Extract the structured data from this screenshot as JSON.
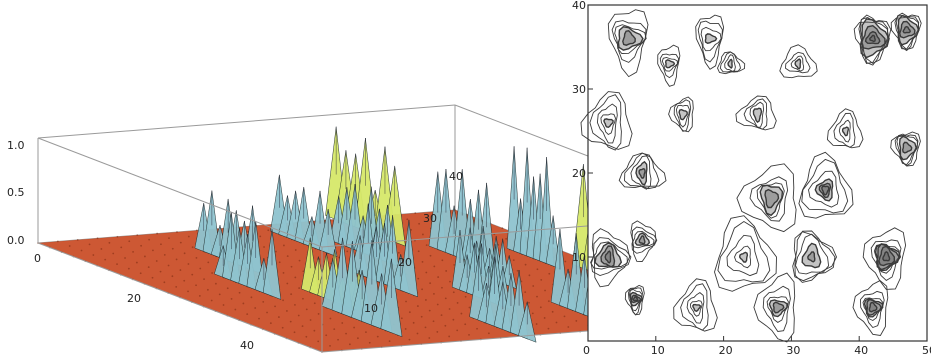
{
  "chart_data": [
    {
      "type": "surface3d",
      "z_ticks": [
        "0.0",
        "0.5",
        "1.0"
      ],
      "x_ticks": [
        "0",
        "20",
        "40"
      ],
      "y_ticks": [
        "10",
        "20",
        "30",
        "40"
      ],
      "zlim": [
        0,
        1
      ],
      "colors": {
        "floor": "#c8461e",
        "peak": "#8fc4cf",
        "plateau": "#d6e86a",
        "box": "#9a9a9a"
      },
      "blobs": [
        {
          "x": 5,
          "y": 30,
          "h": 0.95,
          "w": 3,
          "style": "green"
        },
        {
          "x": 18,
          "y": 32,
          "h": 0.9,
          "w": 2.5,
          "style": "blue"
        },
        {
          "x": 20,
          "y": 38,
          "h": 1.1,
          "w": 2,
          "style": "blue"
        },
        {
          "x": 13,
          "y": 25,
          "h": 0.7,
          "w": 2.5,
          "style": "blue"
        },
        {
          "x": 8,
          "y": 22,
          "h": 0.6,
          "w": 2.5,
          "style": "blue"
        },
        {
          "x": 30,
          "y": 40,
          "h": 1.05,
          "w": 3,
          "style": "green"
        },
        {
          "x": 25,
          "y": 20,
          "h": 0.75,
          "w": 2.5,
          "style": "blue"
        },
        {
          "x": 33,
          "y": 25,
          "h": 0.6,
          "w": 2.2,
          "style": "blue"
        },
        {
          "x": 38,
          "y": 10,
          "h": 0.85,
          "w": 3,
          "style": "blue"
        },
        {
          "x": 22,
          "y": 8,
          "h": 0.7,
          "w": 2.5,
          "style": "blue"
        },
        {
          "x": 30,
          "y": 12,
          "h": 0.55,
          "w": 2.5,
          "style": "green"
        },
        {
          "x": 42,
          "y": 30,
          "h": 0.8,
          "w": 2.5,
          "style": "blue"
        },
        {
          "x": 12,
          "y": 12,
          "h": 0.65,
          "w": 2.5,
          "style": "blue"
        },
        {
          "x": 45,
          "y": 20,
          "h": 0.7,
          "w": 2.5,
          "style": "blue"
        },
        {
          "x": 26,
          "y": 30,
          "h": 0.5,
          "w": 2,
          "style": "blue"
        }
      ]
    },
    {
      "type": "contour",
      "x_ticks": [
        "0",
        "10",
        "20",
        "30",
        "40",
        "50"
      ],
      "y_ticks": [
        "10",
        "20",
        "30",
        "40"
      ],
      "xlim": [
        0,
        50
      ],
      "ylim": [
        0,
        40
      ],
      "colors": {
        "line": "#3a3a3a",
        "fill": "#555555"
      },
      "clusters": [
        {
          "x": 6,
          "y": 36,
          "r": 3.5,
          "dark": 0.6
        },
        {
          "x": 12,
          "y": 33,
          "r": 2,
          "dark": 0.3
        },
        {
          "x": 3,
          "y": 26,
          "r": 3,
          "dark": 0.4
        },
        {
          "x": 8,
          "y": 20,
          "r": 2.5,
          "dark": 0.5
        },
        {
          "x": 3,
          "y": 10,
          "r": 3,
          "dark": 0.8
        },
        {
          "x": 8,
          "y": 12,
          "r": 2,
          "dark": 0.5
        },
        {
          "x": 7,
          "y": 5,
          "r": 1.5,
          "dark": 0.7
        },
        {
          "x": 18,
          "y": 36,
          "r": 2.5,
          "dark": 0.3
        },
        {
          "x": 14,
          "y": 27,
          "r": 2,
          "dark": 0.3
        },
        {
          "x": 25,
          "y": 27,
          "r": 2.5,
          "dark": 0.2
        },
        {
          "x": 31,
          "y": 33,
          "r": 2,
          "dark": 0.2
        },
        {
          "x": 42,
          "y": 36,
          "r": 3,
          "dark": 0.9
        },
        {
          "x": 47,
          "y": 37,
          "r": 2.5,
          "dark": 0.7
        },
        {
          "x": 47,
          "y": 23,
          "r": 2.5,
          "dark": 0.6
        },
        {
          "x": 27,
          "y": 17,
          "r": 4,
          "dark": 0.5
        },
        {
          "x": 35,
          "y": 18,
          "r": 3,
          "dark": 0.7
        },
        {
          "x": 23,
          "y": 10,
          "r": 3.5,
          "dark": 0.4
        },
        {
          "x": 33,
          "y": 10,
          "r": 3,
          "dark": 0.6
        },
        {
          "x": 44,
          "y": 10,
          "r": 3,
          "dark": 0.9
        },
        {
          "x": 42,
          "y": 4,
          "r": 2.5,
          "dark": 0.7
        },
        {
          "x": 28,
          "y": 4,
          "r": 3,
          "dark": 0.5
        },
        {
          "x": 16,
          "y": 4,
          "r": 2.5,
          "dark": 0.4
        },
        {
          "x": 38,
          "y": 25,
          "r": 2,
          "dark": 0.3
        },
        {
          "x": 21,
          "y": 33,
          "r": 1.5,
          "dark": 0.2
        }
      ]
    }
  ]
}
